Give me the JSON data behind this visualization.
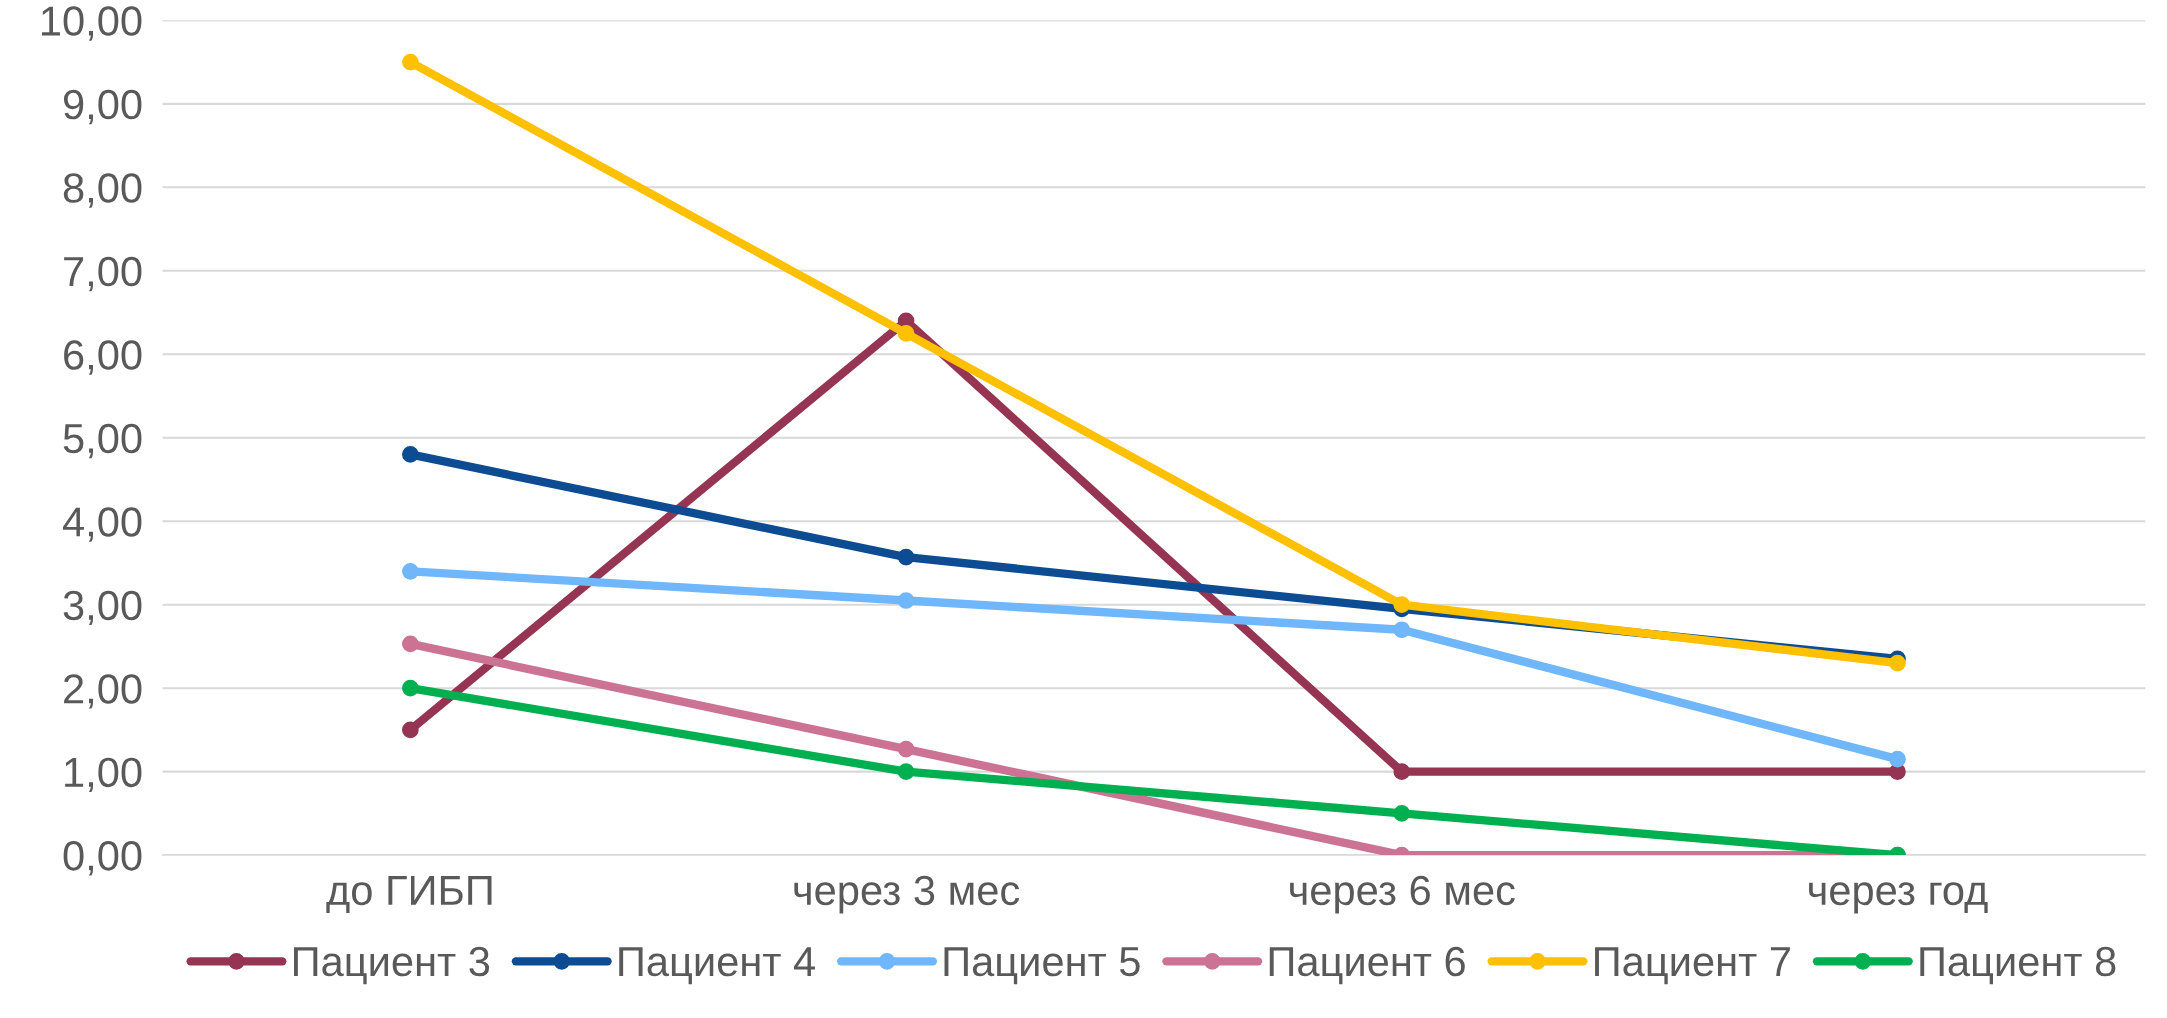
{
  "chart_data": {
    "type": "line",
    "categories": [
      "до ГИБП",
      "через 3 мес",
      "через 6 мес",
      "через год"
    ],
    "series": [
      {
        "name": "Пациент 3",
        "color": "#953553",
        "values": [
          1.5,
          6.4,
          1.0,
          1.0
        ]
      },
      {
        "name": "Пациент 4",
        "color": "#0d4c92",
        "values": [
          4.8,
          3.57,
          2.95,
          2.35
        ]
      },
      {
        "name": "Пациент 5",
        "color": "#6fb6fb",
        "values": [
          3.4,
          3.05,
          2.7,
          1.15
        ]
      },
      {
        "name": "Пациент 6",
        "color": "#cc7394",
        "values": [
          2.53,
          1.27,
          0.0,
          0.0
        ]
      },
      {
        "name": "Пациент 7",
        "color": "#ffc000",
        "values": [
          9.5,
          6.25,
          3.0,
          2.3
        ]
      },
      {
        "name": "Пациент 8",
        "color": "#00b050",
        "values": [
          2.0,
          1.0,
          0.5,
          0.0
        ]
      }
    ],
    "ylim": [
      0,
      10
    ],
    "yticks": [
      {
        "value": 0,
        "label": "0,00"
      },
      {
        "value": 1,
        "label": "1,00"
      },
      {
        "value": 2,
        "label": "2,00"
      },
      {
        "value": 3,
        "label": "3,00"
      },
      {
        "value": 4,
        "label": "4,00"
      },
      {
        "value": 5,
        "label": "5,00"
      },
      {
        "value": 6,
        "label": "6,00"
      },
      {
        "value": 7,
        "label": "7,00"
      },
      {
        "value": 8,
        "label": "8,00"
      },
      {
        "value": 9,
        "label": "9,00"
      },
      {
        "value": 10,
        "label": "10,00"
      }
    ],
    "grid": "y",
    "legend": "bottom",
    "marker": "circle",
    "line_style": "solid"
  }
}
